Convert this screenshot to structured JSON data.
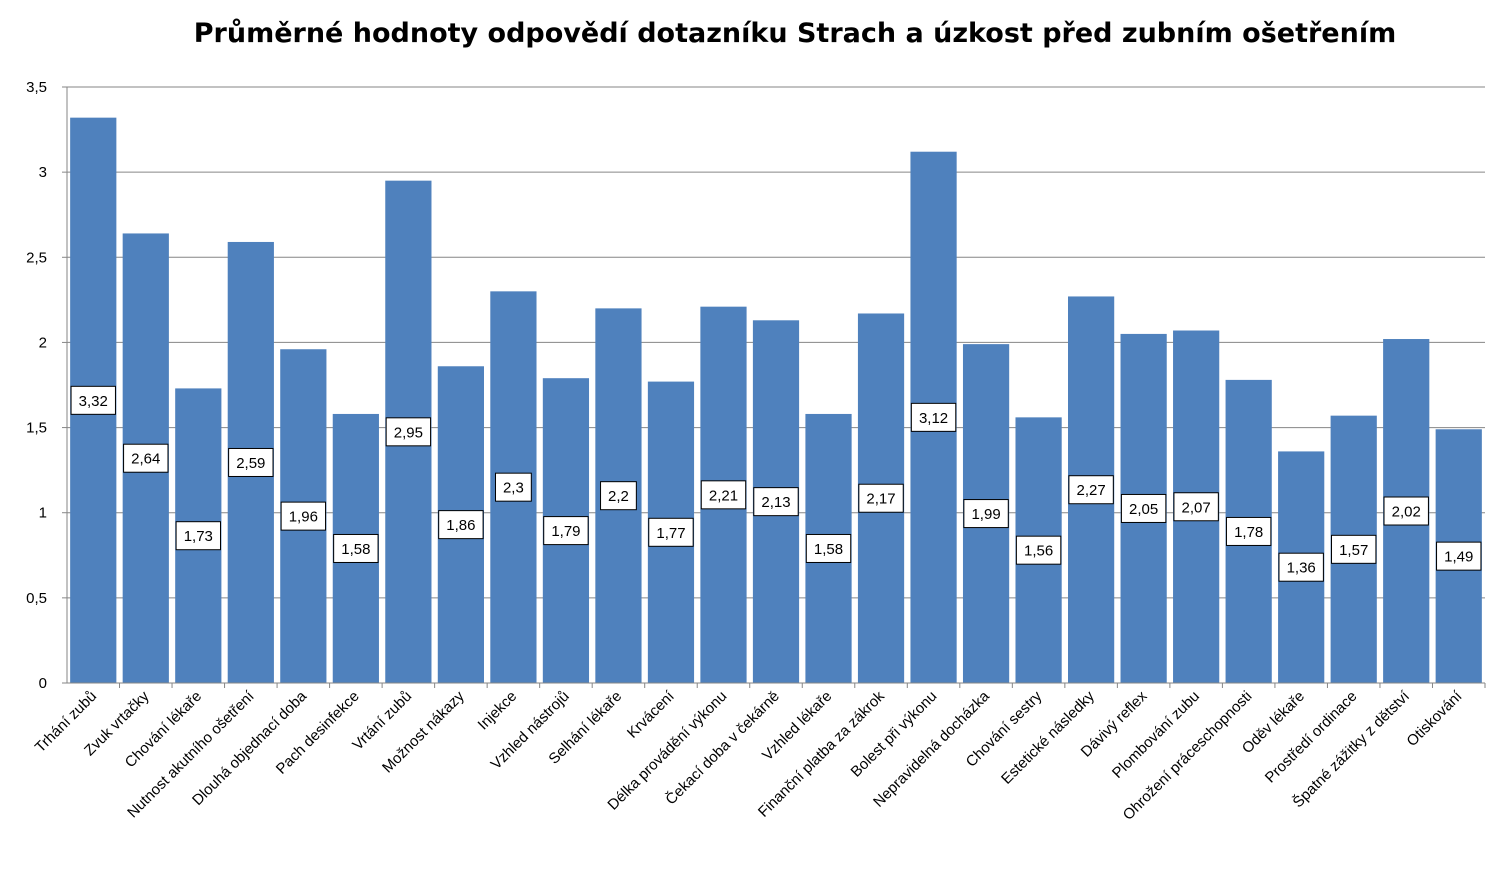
{
  "chart_data": {
    "type": "bar",
    "title": "Průměrné hodnoty odpovědí dotazníku Strach a úzkost před zubním ošetřením",
    "xlabel": "",
    "ylabel": "",
    "ylim": [
      0,
      3.5
    ],
    "y_ticks": [
      "0",
      "0,5",
      "1",
      "1,5",
      "2",
      "2,5",
      "3",
      "3,5"
    ],
    "grid": true,
    "legend": "none",
    "bar_color": "#4F81BD",
    "categories": [
      "Trhání zubů",
      "Zvuk vrtačky",
      "Chování lékaře",
      "Nutnost akutního ošetření",
      "Dlouhá objednací doba",
      "Pach desinfekce",
      "Vrtání zubů",
      "Možnost nákazy",
      "Injekce",
      "Vzhled nástrojů",
      "Selhání lékaře",
      "Krvácení",
      "Délka provádění výkonu",
      "Čekací doba v čekárně",
      "Vzhled lékaře",
      "Finanční platba za zákrok",
      "Bolest při výkonu",
      "Nepravidelná docházka",
      "Chování sestry",
      "Estetické následky",
      "Dávivý reflex",
      "Plombování zubu",
      "Ohrožení práceschopnosti",
      "Oděv lékaře",
      "Prostředí ordinace",
      "Špatné zážitky z dětství",
      "Otiskování"
    ],
    "values": [
      3.32,
      2.64,
      1.73,
      2.59,
      1.96,
      1.58,
      2.95,
      1.86,
      2.3,
      1.79,
      2.2,
      1.77,
      2.21,
      2.13,
      1.58,
      2.17,
      3.12,
      1.99,
      1.56,
      2.27,
      2.05,
      2.07,
      1.78,
      1.36,
      1.57,
      2.02,
      1.49
    ],
    "data_labels": [
      "3,32",
      "2,64",
      "1,73",
      "2,59",
      "1,96",
      "1,58",
      "2,95",
      "1,86",
      "2,3",
      "1,79",
      "2,2",
      "1,77",
      "2,21",
      "2,13",
      "1,58",
      "2,17",
      "3,12",
      "1,99",
      "1,56",
      "2,27",
      "2,05",
      "2,07",
      "1,78",
      "1,36",
      "1,57",
      "2,02",
      "1,49"
    ]
  }
}
